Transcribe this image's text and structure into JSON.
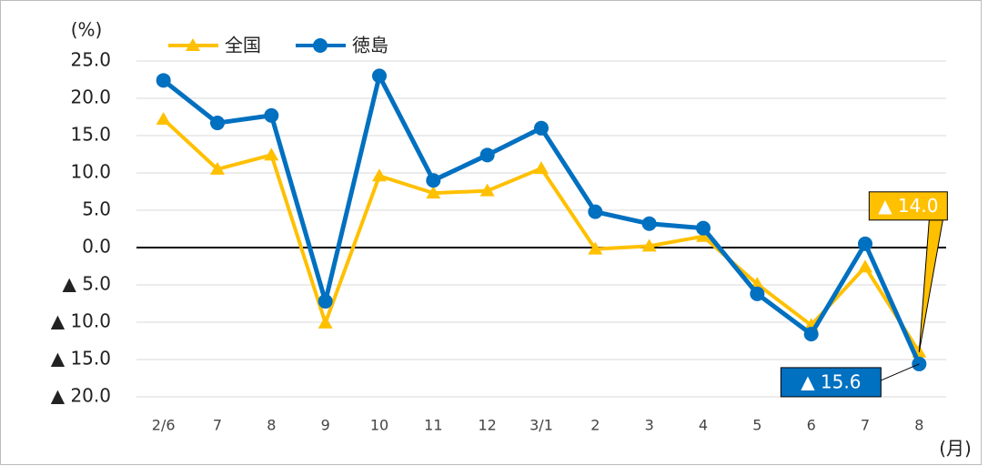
{
  "chart_data": {
    "type": "line",
    "y_label": "(%)",
    "x_label": "(月)",
    "categories": [
      "2/6",
      "7",
      "8",
      "9",
      "10",
      "11",
      "12",
      "3/1",
      "2",
      "3",
      "4",
      "5",
      "6",
      "7",
      "8"
    ],
    "series": [
      {
        "name": "全国",
        "color": "#ffc000",
        "marker": "triangle",
        "values": [
          17.2,
          10.5,
          12.4,
          -10.1,
          9.6,
          7.3,
          7.6,
          10.6,
          -0.2,
          0.2,
          1.5,
          -4.9,
          -10.4,
          -2.6,
          -14.0
        ],
        "value_labels": [
          null,
          null,
          null,
          null,
          null,
          null,
          null,
          null,
          null,
          null,
          null,
          null,
          null,
          null,
          "▲ 14.0"
        ]
      },
      {
        "name": "徳島",
        "color": "#0070c0",
        "marker": "circle",
        "values": [
          22.4,
          16.7,
          17.7,
          -7.2,
          23.0,
          9.0,
          12.4,
          16.0,
          4.8,
          3.2,
          2.6,
          -6.2,
          -11.6,
          0.5,
          -15.6
        ],
        "value_labels": [
          null,
          null,
          null,
          null,
          null,
          null,
          null,
          null,
          null,
          null,
          null,
          null,
          null,
          null,
          "▲ 15.6"
        ]
      }
    ],
    "ylim": [
      -20,
      25
    ],
    "yticks": [
      {
        "value": 25,
        "label": "25.0"
      },
      {
        "value": 20,
        "label": "20.0"
      },
      {
        "value": 15,
        "label": "15.0"
      },
      {
        "value": 10,
        "label": "10.0"
      },
      {
        "value": 5,
        "label": "5.0"
      },
      {
        "value": 0,
        "label": "0.0"
      },
      {
        "value": -5,
        "label": "▲ 5.0"
      },
      {
        "value": -10,
        "label": "▲ 10.0"
      },
      {
        "value": -15,
        "label": "▲ 15.0"
      },
      {
        "value": -20,
        "label": "▲ 20.0"
      }
    ],
    "grid": true
  }
}
